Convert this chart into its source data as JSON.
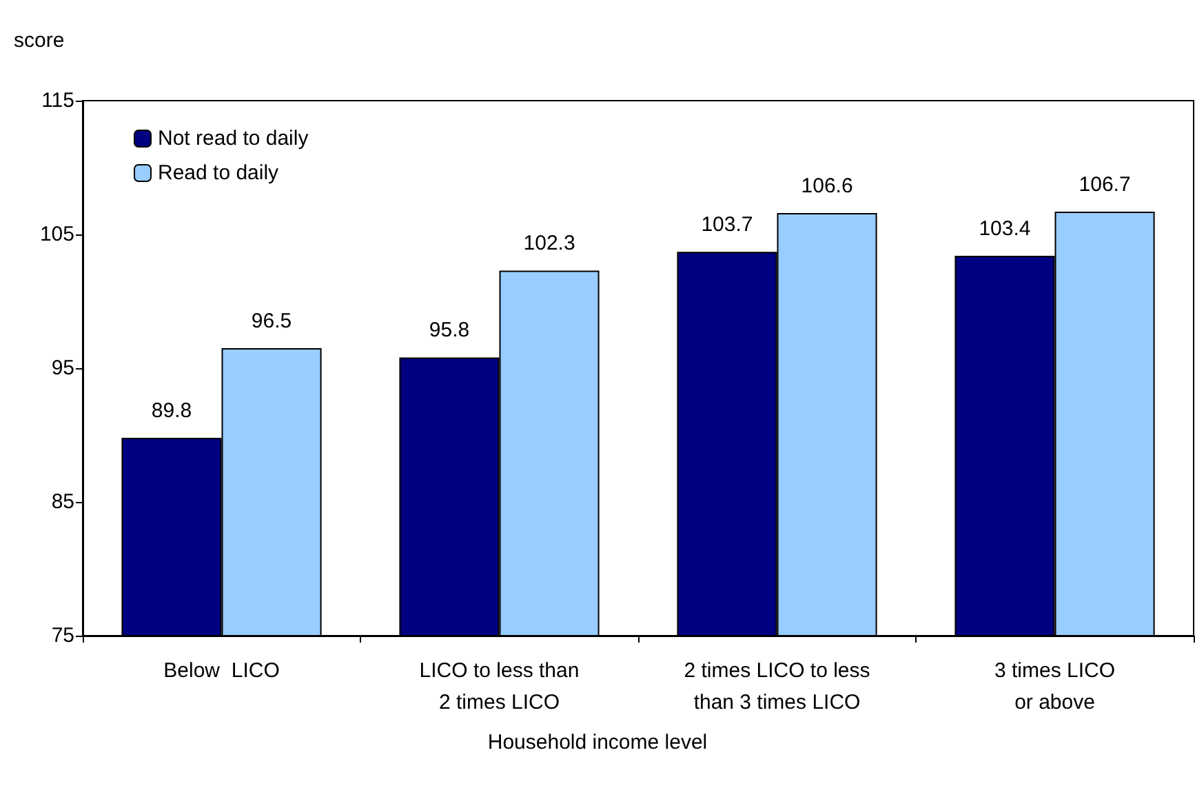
{
  "chart_data": {
    "type": "bar",
    "ylabel": "score",
    "xlabel": "Household income level",
    "categories": [
      "Below  LICO",
      "LICO to less than\n2 times LICO",
      "2 times LICO to less\nthan 3 times LICO",
      "3 times LICO\nor above"
    ],
    "series": [
      {
        "name": "Not read to daily",
        "color": "#000080",
        "values": [
          89.8,
          95.8,
          103.7,
          103.4
        ]
      },
      {
        "name": "Read to daily",
        "color": "#99ccff",
        "values": [
          96.5,
          102.3,
          106.6,
          106.7
        ]
      }
    ],
    "ylim": [
      75,
      115
    ],
    "yticks": [
      75,
      85,
      95,
      105,
      115
    ],
    "grid": false,
    "legend": "top left",
    "data_labels": true
  }
}
